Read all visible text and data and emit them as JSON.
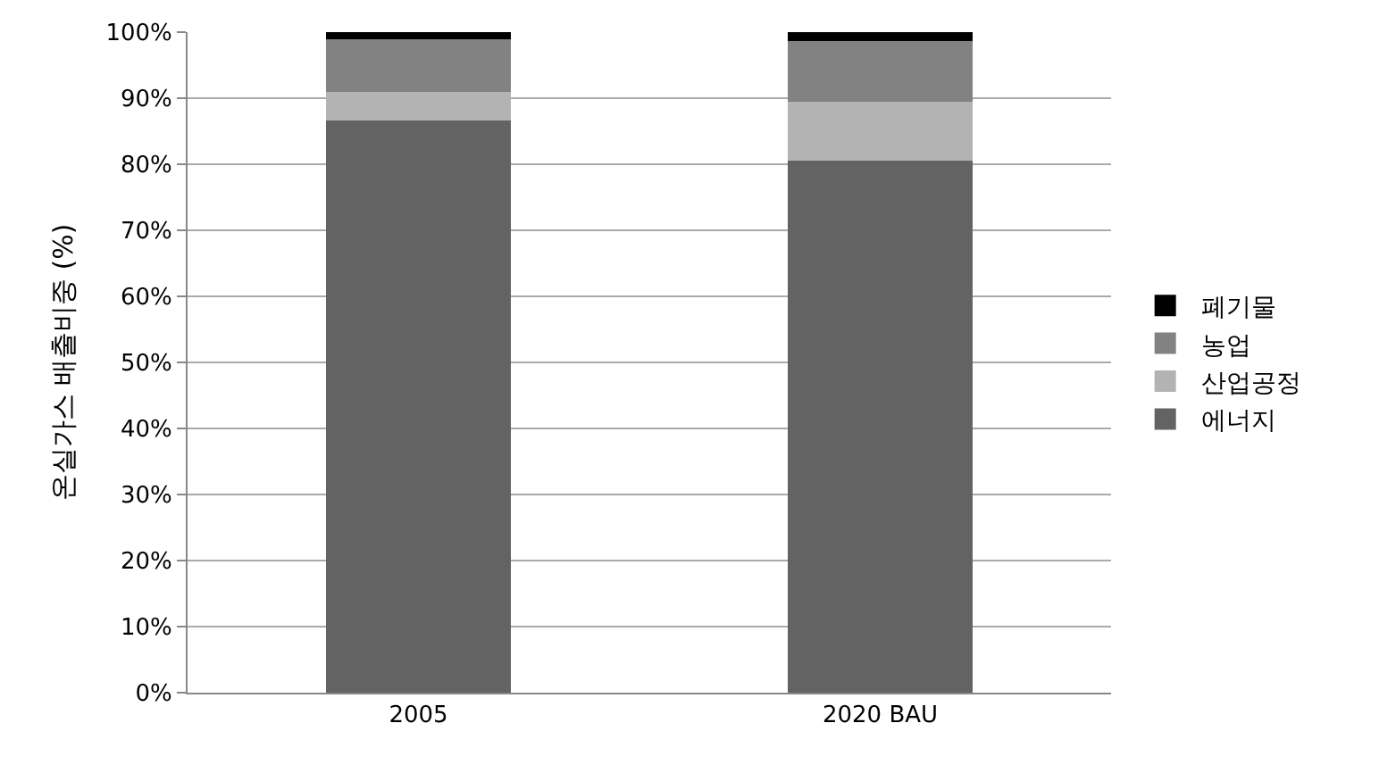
{
  "chart_data": {
    "type": "bar",
    "stacked": true,
    "ylabel": "온실가스 배출비중 (%)",
    "categories": [
      "2005",
      "2020 BAU"
    ],
    "series": [
      {
        "name": "에너지",
        "color": "#636363",
        "values": [
          86.6,
          80.5
        ]
      },
      {
        "name": "산업공정",
        "color": "#b3b3b3",
        "values": [
          4.3,
          8.9
        ]
      },
      {
        "name": "농업",
        "color": "#828282",
        "values": [
          8.0,
          9.2
        ]
      },
      {
        "name": "폐기물",
        "color": "#000000",
        "values": [
          1.1,
          1.4
        ]
      }
    ],
    "ylim": [
      0,
      100
    ],
    "yticks": [
      {
        "value": 0,
        "label": "0%"
      },
      {
        "value": 10,
        "label": "10%"
      },
      {
        "value": 20,
        "label": "20%"
      },
      {
        "value": 30,
        "label": "30%"
      },
      {
        "value": 40,
        "label": "40%"
      },
      {
        "value": 50,
        "label": "50%"
      },
      {
        "value": 60,
        "label": "60%"
      },
      {
        "value": 70,
        "label": "70%"
      },
      {
        "value": 80,
        "label": "80%"
      },
      {
        "value": 90,
        "label": "90%"
      },
      {
        "value": 100,
        "label": "100%"
      }
    ],
    "grid": "y",
    "legend": "right"
  }
}
